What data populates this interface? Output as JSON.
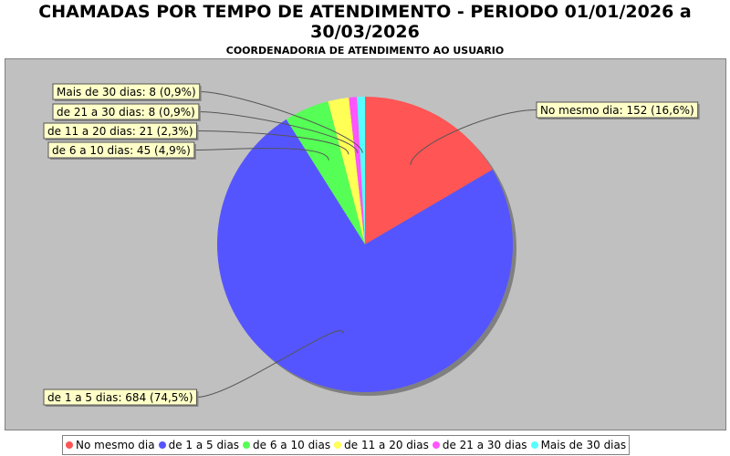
{
  "chart_data": {
    "type": "pie",
    "title": "CHAMADAS POR TEMPO DE ATENDIMENTO - PERIODO 01/01/2026 a 30/03/2026",
    "subtitle": "COORDENADORIA DE ATENDIMENTO AO USUARIO",
    "legend_position": "bottom",
    "slices": [
      {
        "name": "No mesmo dia",
        "value": 152,
        "percent": "16,6%",
        "color": "#ff5555",
        "label": "No mesmo dia: 152 (16,6%)"
      },
      {
        "name": "de 1 a 5 dias",
        "value": 684,
        "percent": "74,5%",
        "color": "#5555ff",
        "label": "de 1 a 5 dias: 684 (74,5%)"
      },
      {
        "name": "de 6 a 10 dias",
        "value": 45,
        "percent": "4,9%",
        "color": "#55ff55",
        "label": "de 6 a 10 dias: 45 (4,9%)"
      },
      {
        "name": "de 11 a 20 dias",
        "value": 21,
        "percent": "2,3%",
        "color": "#ffff55",
        "label": "de 11 a 20 dias: 21 (2,3%)"
      },
      {
        "name": "de 21 a 30 dias",
        "value": 8,
        "percent": "0,9%",
        "color": "#ff55ff",
        "label": "de 21 a 30 dias: 8 (0,9%)"
      },
      {
        "name": "Mais de 30 dias",
        "value": 8,
        "percent": "0,9%",
        "color": "#55ffff",
        "label": "Mais de 30 dias: 8 (0,9%)"
      }
    ]
  }
}
